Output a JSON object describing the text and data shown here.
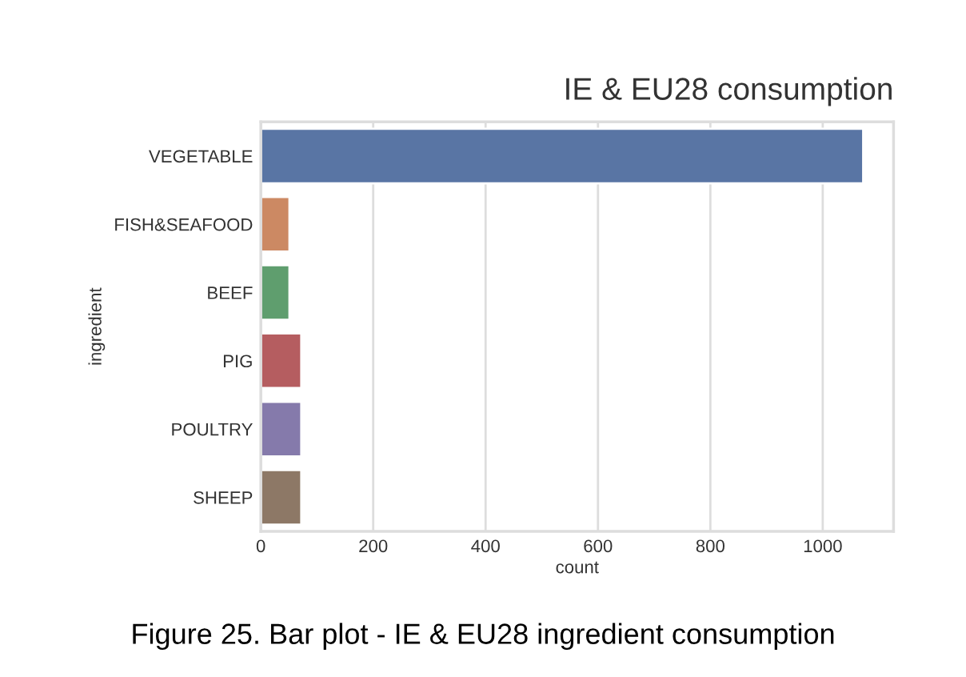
{
  "chart_data": {
    "type": "bar",
    "orientation": "horizontal",
    "title": "IE & EU28 consumption",
    "xlabel": "count",
    "ylabel": "ingredient",
    "categories": [
      "VEGETABLE",
      "FISH&SEAFOOD",
      "BEEF",
      "PIG",
      "POULTRY",
      "SHEEP"
    ],
    "values": [
      1072,
      51,
      51,
      72,
      72,
      72
    ],
    "colors": [
      "#5975a4",
      "#cc8963",
      "#5f9e6e",
      "#b55d60",
      "#857aab",
      "#8d7866"
    ],
    "xlim": [
      0,
      1126
    ],
    "xticks": [
      0,
      200,
      400,
      600,
      800,
      1000
    ],
    "grid": "x",
    "legend": false,
    "annotations": [
      "Figure 25. Bar plot - IE & EU28 ingredient consumption"
    ]
  }
}
